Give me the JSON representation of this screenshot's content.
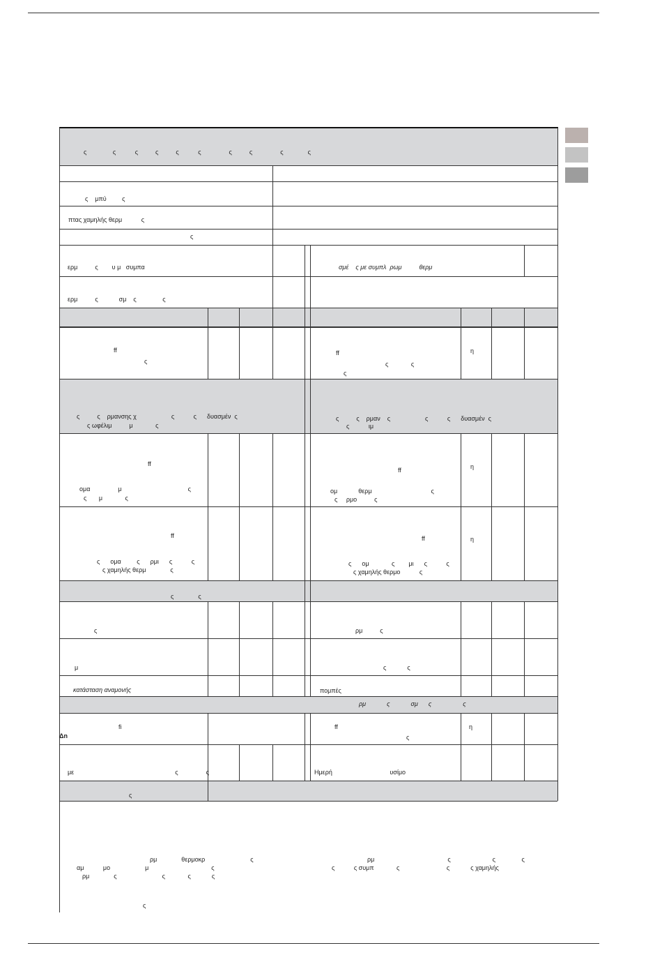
{
  "swatch_colors": [
    "#bbb1ae",
    "#c3c3c3",
    "#9d9d9d"
  ],
  "header_fill": "#d7d8da",
  "texts": {
    "header": "ς               ς           ς          ς          ς           ς                ς          ς                ς              ς",
    "r1": "ς    μπύ         ς",
    "r2": "πτας χαμηλής θερμ           ς",
    "r3": "ς",
    "r4l": "ερμ          ς        υ μ   συμπα",
    "r4r": "σμέ    ς με συμπλ  ρωμ          θερμ",
    "r5": "ερμ          ς            σμ    ς               ς",
    "r7l_a": "ff",
    "r7l_b": "ς",
    "r7r_a": "ff",
    "r7r_b": "ς             ς",
    "r7r_c": "ς",
    "r7r_unit": "η",
    "g8l_a": "ς          ς    ρμανσης χ                    ς           ς      δυασμέν  ς",
    "g8l_b": "ς ωφέλιμ          μ             ς",
    "g8r_a": "ς          ς    ρμαν    ς                    ς           ς      δυασμέν  ς",
    "g8r_b": "ς           ιμ",
    "r9l_a": "ff",
    "r9l_b": "ομα                μ                                      ς",
    "r9l_c": "ς       μ             ς",
    "r9r_a": "ff",
    "r9r_b": "ομ            θερμ                                  ς",
    "r9r_c": "ς     ρμο          ς",
    "r9r_unit": "η",
    "r10l_a": "ff",
    "r10l_b": "ς      ομα         ς      ρμι      ς           ς",
    "r10l_c": "ς χαμηλής θερμ              ς",
    "r10r_a": "ff",
    "r10r_b": "ς      ομ             ς        μι      ς           ς",
    "r10r_c": "ς χαμηλής θερμο           ς",
    "r10r_unit": "η",
    "g11": "ς              ς",
    "r12l": "ς",
    "r12r": "ρμ          ς",
    "r13l": "μ",
    "r13r": "ς            ς",
    "r14l": "κατάσταση αναμονής",
    "r14r": "πομπές",
    "g15": "ρμ            ς            σμ      ς                  ς",
    "r16l_a": "fi",
    "r16l_b": "Δn",
    "r16r_a": "ff",
    "r16r_b": "ς",
    "r16r_unit": "η",
    "r17l": "με                                                          ς                ς",
    "r17r": "Ημερή                                 υσίμο",
    "g18": "ς",
    "n1": "ρμ              θερμοκρ                          ς",
    "n2": "ρμ                                          ς                        ς               ς",
    "n3": "αμ           μο                    μ                                    ς",
    "n4": "ς           ς συμπ             ς                           ς            ς χαμηλής",
    "n5": "ρμ              ς                          ς             ς            ς",
    "n6": "ς"
  }
}
